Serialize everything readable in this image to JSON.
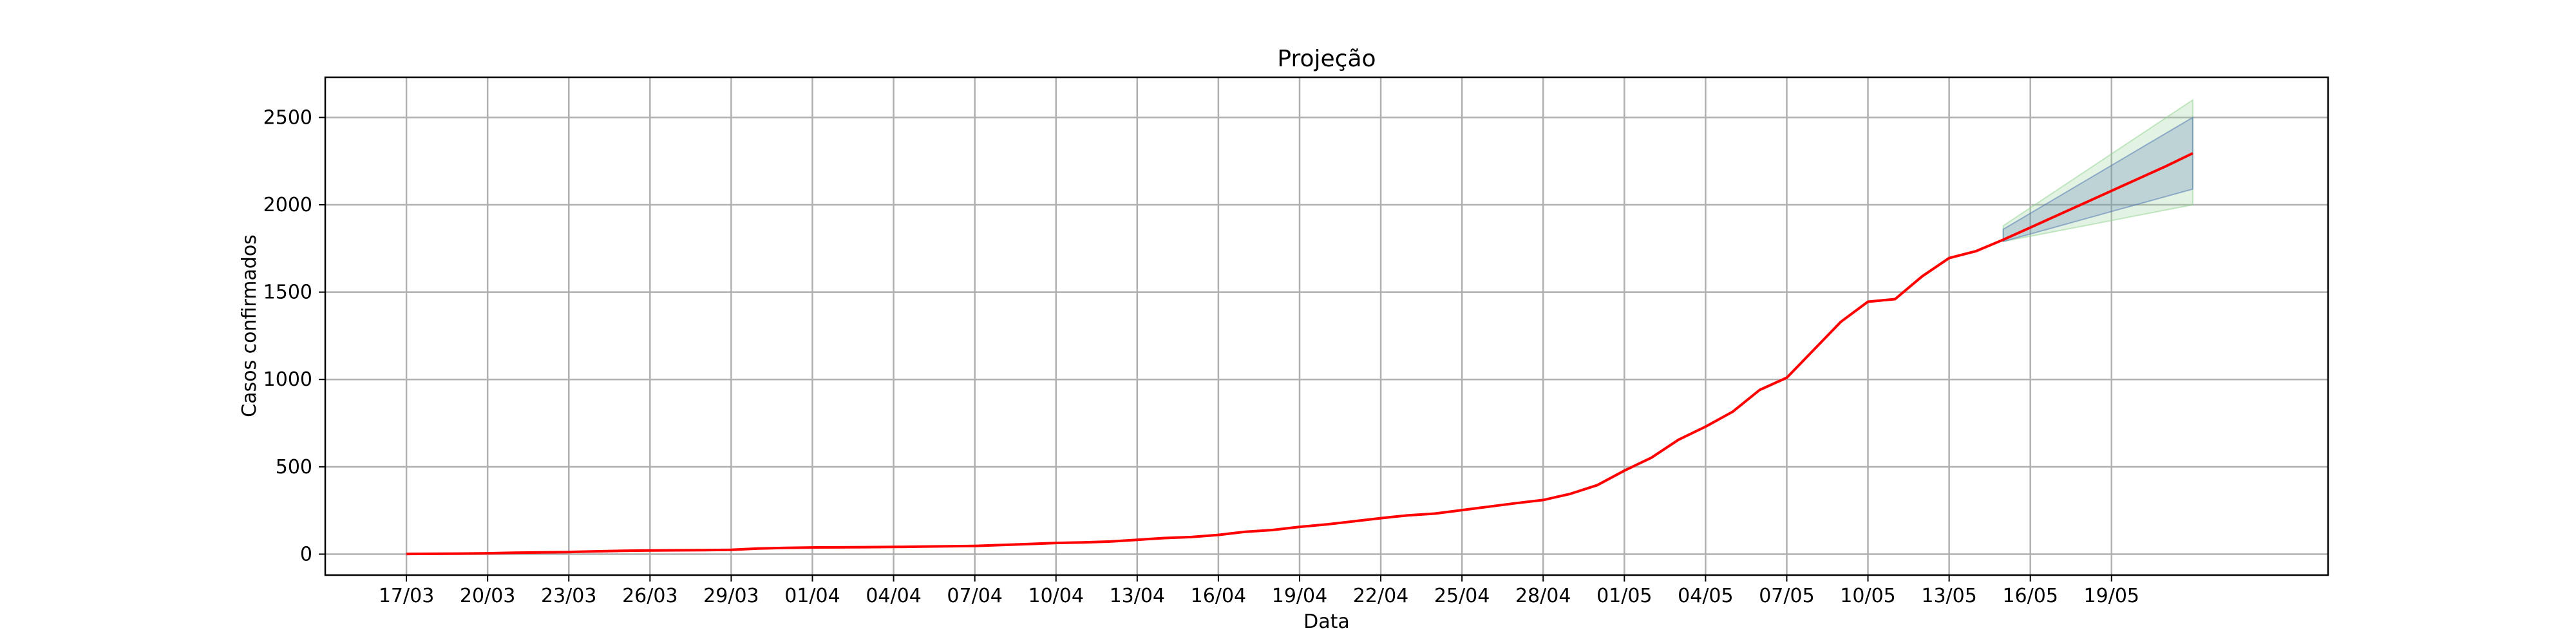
{
  "chart_data": {
    "type": "line",
    "title": "Projeção",
    "xlabel": "Data",
    "ylabel": "Casos confirmados",
    "x_tick_labels": [
      "17/03",
      "20/03",
      "23/03",
      "26/03",
      "29/03",
      "01/04",
      "04/04",
      "07/04",
      "10/04",
      "13/04",
      "16/04",
      "19/04",
      "22/04",
      "25/04",
      "28/04",
      "01/05",
      "04/05",
      "07/05",
      "10/05",
      "13/05",
      "16/05",
      "19/05"
    ],
    "y_ticks": [
      0,
      500,
      1000,
      1500,
      2000,
      2500
    ],
    "ylim": [
      -120,
      2730
    ],
    "xlim": [
      "2020-03-14",
      "2020-05-27"
    ],
    "grid": true,
    "colors": {
      "observed": "#ff0000",
      "inner_band": "#4c72b0",
      "outer_band": "#8fd18f"
    },
    "series": [
      {
        "points": [
          [
            "2020-03-17",
            1
          ],
          [
            "2020-03-18",
            2
          ],
          [
            "2020-03-19",
            3
          ],
          [
            "2020-03-20",
            5
          ],
          [
            "2020-03-21",
            8
          ],
          [
            "2020-03-22",
            10
          ],
          [
            "2020-03-23",
            12
          ],
          [
            "2020-03-24",
            16
          ],
          [
            "2020-03-25",
            19
          ],
          [
            "2020-03-26",
            21
          ],
          [
            "2020-03-27",
            22
          ],
          [
            "2020-03-28",
            23
          ],
          [
            "2020-03-29",
            25
          ],
          [
            "2020-03-30",
            32
          ],
          [
            "2020-03-31",
            36
          ],
          [
            "2020-04-01",
            38
          ],
          [
            "2020-04-02",
            39
          ],
          [
            "2020-04-03",
            40
          ],
          [
            "2020-04-04",
            41
          ],
          [
            "2020-04-05",
            43
          ],
          [
            "2020-04-06",
            45
          ],
          [
            "2020-04-07",
            47
          ],
          [
            "2020-04-08",
            52
          ],
          [
            "2020-04-09",
            58
          ],
          [
            "2020-04-10",
            64
          ],
          [
            "2020-04-11",
            67
          ],
          [
            "2020-04-12",
            72
          ],
          [
            "2020-04-13",
            82
          ],
          [
            "2020-04-14",
            92
          ],
          [
            "2020-04-15",
            98
          ],
          [
            "2020-04-16",
            110
          ],
          [
            "2020-04-17",
            128
          ],
          [
            "2020-04-18",
            138
          ],
          [
            "2020-04-19",
            156
          ],
          [
            "2020-04-20",
            170
          ],
          [
            "2020-04-21",
            188
          ],
          [
            "2020-04-22",
            206
          ],
          [
            "2020-04-23",
            222
          ],
          [
            "2020-04-24",
            232
          ],
          [
            "2020-04-25",
            252
          ],
          [
            "2020-04-26",
            272
          ],
          [
            "2020-04-27",
            292
          ],
          [
            "2020-04-28",
            310
          ],
          [
            "2020-04-29",
            345
          ],
          [
            "2020-04-30",
            395
          ],
          [
            "2020-05-01",
            478
          ],
          [
            "2020-05-02",
            552
          ],
          [
            "2020-05-03",
            655
          ],
          [
            "2020-05-04",
            730
          ],
          [
            "2020-05-05",
            815
          ],
          [
            "2020-05-06",
            940
          ],
          [
            "2020-05-07",
            1010
          ],
          [
            "2020-05-08",
            1170
          ],
          [
            "2020-05-09",
            1330
          ],
          [
            "2020-05-10",
            1445
          ],
          [
            "2020-05-11",
            1460
          ],
          [
            "2020-05-12",
            1590
          ],
          [
            "2020-05-13",
            1695
          ],
          [
            "2020-05-14",
            1735
          ],
          [
            "2020-05-15",
            1800
          ]
        ]
      },
      {
        "points": [
          [
            "2020-05-15",
            1800
          ],
          [
            "2020-05-16",
            1870
          ],
          [
            "2020-05-17",
            1940
          ],
          [
            "2020-05-18",
            2010
          ],
          [
            "2020-05-19",
            2080
          ],
          [
            "2020-05-20",
            2150
          ],
          [
            "2020-05-21",
            2220
          ],
          [
            "2020-05-22",
            2295
          ]
        ]
      }
    ],
    "bands": [
      {
        "color": "green",
        "x": [
          "2020-05-15",
          "2020-05-22"
        ],
        "lower": [
          1790,
          2000
        ],
        "upper": [
          1880,
          2600
        ]
      },
      {
        "color": "blue",
        "x": [
          "2020-05-15",
          "2020-05-22"
        ],
        "lower": [
          1790,
          2090
        ],
        "upper": [
          1860,
          2500
        ]
      }
    ]
  }
}
